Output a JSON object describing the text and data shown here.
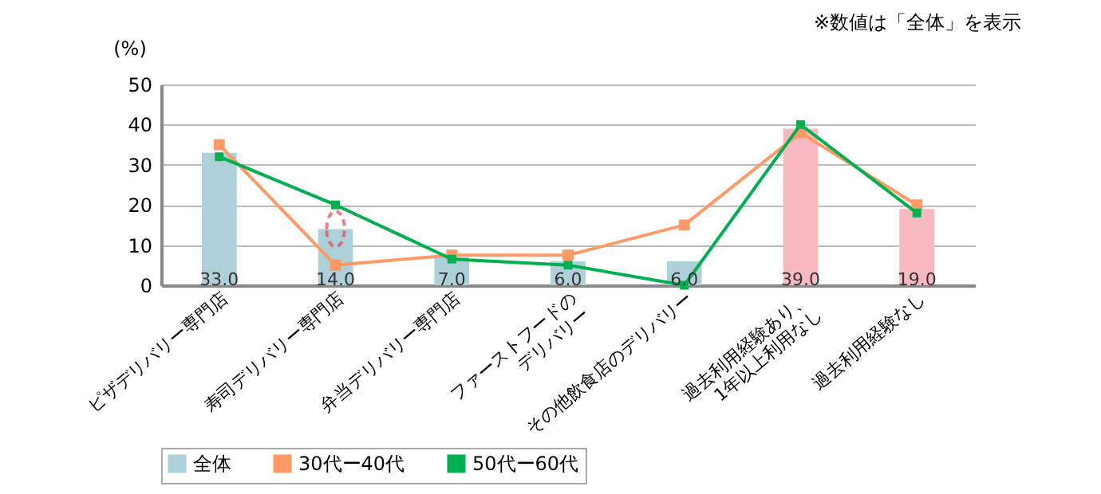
{
  "chart_data": {
    "type": "bar",
    "ylabel": "(%)",
    "annotations": [
      "※数値は「全体」を表示"
    ],
    "categories": [
      "ピザデリバリー専門店",
      "寿司デリバリー専門店",
      "弁当デリバリー専門店",
      "ファーストフードの\nデリバリー",
      "その他飲食店のデリバリー",
      "過去利用経験あり、\n1年以上利用なし",
      "過去利用経験なし"
    ],
    "series": [
      {
        "name": "全体",
        "color": "#aed0d9",
        "colors": [
          "#aed0d9",
          "#aed0d9",
          "#aed0d9",
          "#aed0d9",
          "#aed0d9",
          "#f8b9c1",
          "#f8b9c1"
        ],
        "values": [
          33,
          14,
          7,
          6,
          6,
          39,
          19
        ],
        "value_labels": [
          "33.0",
          "14.0",
          "7.0",
          "6.0",
          "6.0",
          "39.0",
          "19.0"
        ]
      },
      {
        "name": "30代ー40代",
        "type": "line",
        "color": "#ff9966",
        "values": [
          35,
          5,
          7.5,
          7.5,
          15,
          38,
          20
        ]
      },
      {
        "name": "50代ー60代",
        "type": "line",
        "color": "#00b050",
        "values": [
          32,
          20,
          6.5,
          5,
          0,
          40,
          18
        ]
      }
    ],
    "ylim": [
      0,
      50
    ],
    "yticks": [
      0,
      10,
      20,
      30,
      40,
      50
    ],
    "grid": "y",
    "legend": "bottom",
    "marker": "square"
  }
}
